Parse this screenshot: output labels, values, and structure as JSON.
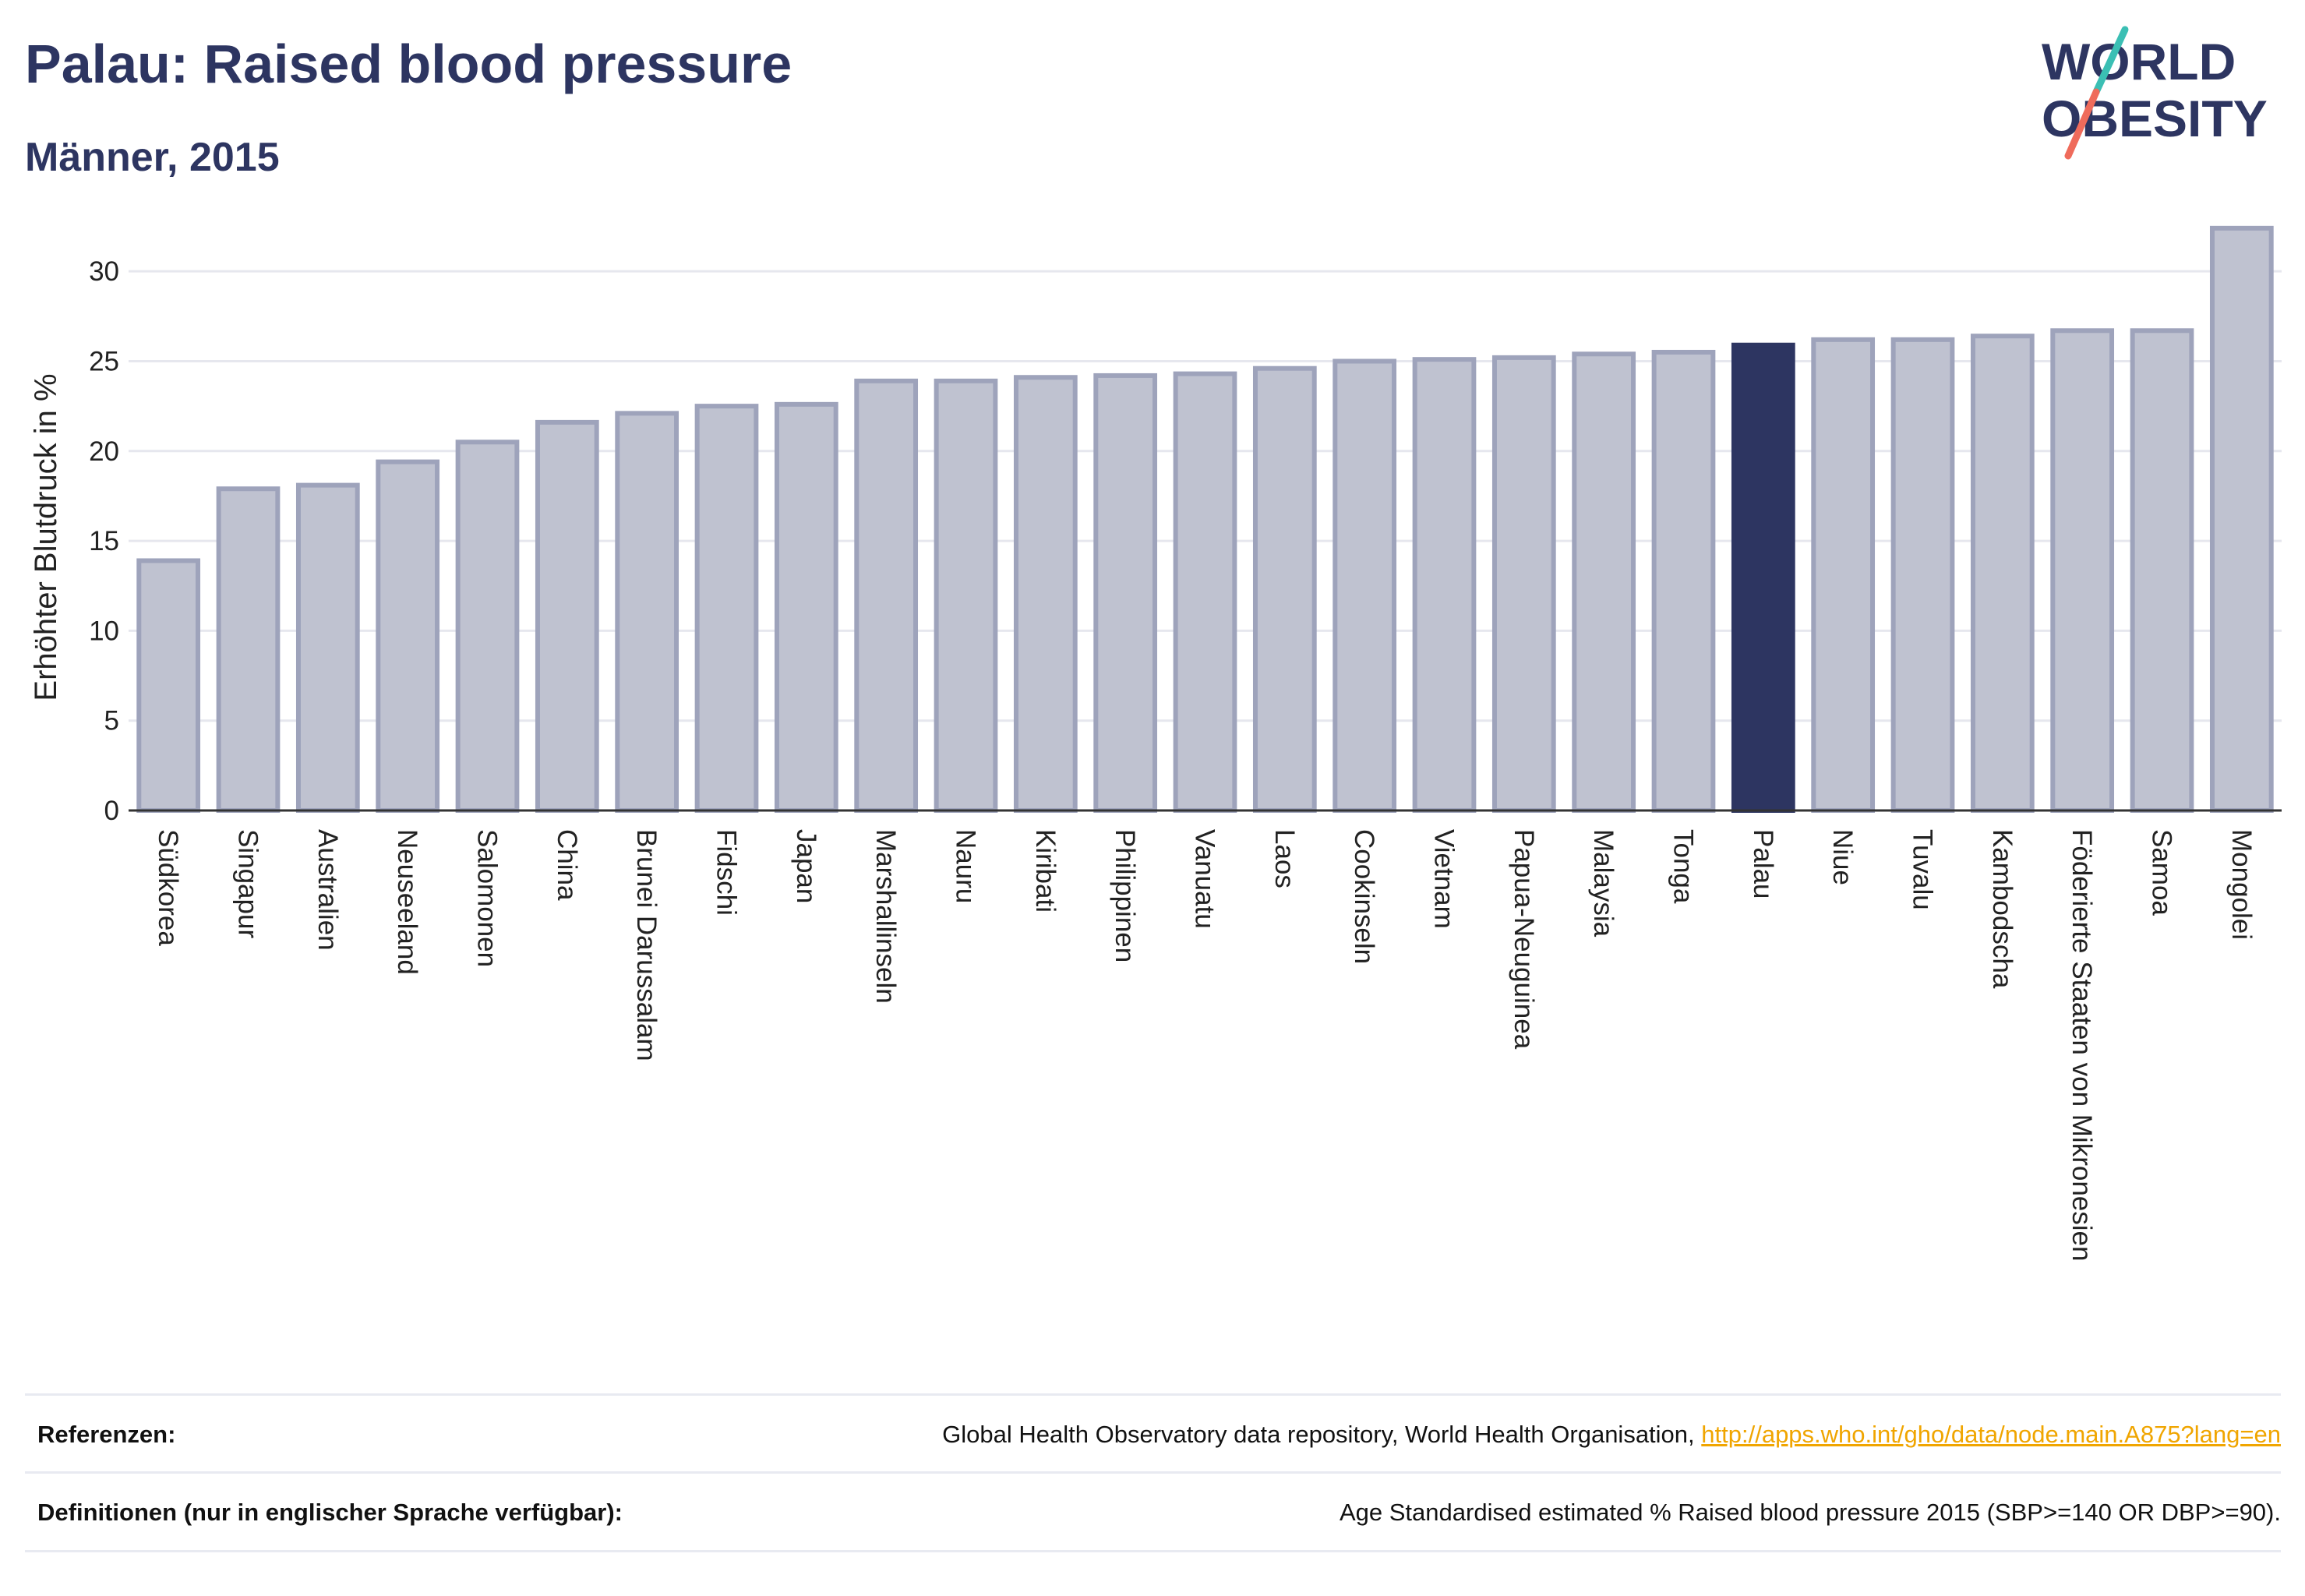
{
  "header": {
    "title": "Palau: Raised blood pressure",
    "subtitle": "Männer, 2015"
  },
  "logo": {
    "line1": "WORLD",
    "line2": "OBESITY",
    "colors": {
      "text": "#2d3561",
      "slash_teal": "#3bbfb4",
      "slash_coral": "#ef6b5b"
    }
  },
  "colors": {
    "bar_fill": "#bfc2d0",
    "bar_stroke": "#9ea3bb",
    "highlight": "#2d3561",
    "grid": "#e6e7ee",
    "baseline": "#333333"
  },
  "chart_data": {
    "type": "bar",
    "ylabel": "Erhöhter Blutdruck in %",
    "ylim": [
      0,
      33
    ],
    "yticks": [
      0,
      5,
      10,
      15,
      20,
      25,
      30
    ],
    "grid": true,
    "highlight_category": "Palau",
    "categories": [
      "Südkorea",
      "Singapur",
      "Australien",
      "Neuseeland",
      "Salomonen",
      "China",
      "Brunei Darussalam",
      "Fidschi",
      "Japan",
      "Marshallinseln",
      "Nauru",
      "Kiribati",
      "Philippinen",
      "Vanuatu",
      "Laos",
      "Cookinseln",
      "Vietnam",
      "Papua-Neuguinea",
      "Malaysia",
      "Tonga",
      "Palau",
      "Niue",
      "Tuvalu",
      "Kambodscha",
      "Föderierte Staaten von Mikronesien",
      "Samoa",
      "Mongolei"
    ],
    "values": [
      13.9,
      17.9,
      18.1,
      19.4,
      20.5,
      21.6,
      22.1,
      22.5,
      22.6,
      23.9,
      23.9,
      24.1,
      24.2,
      24.3,
      24.6,
      25.0,
      25.1,
      25.2,
      25.4,
      25.5,
      25.9,
      26.2,
      26.2,
      26.4,
      26.7,
      26.7,
      32.4
    ]
  },
  "footer": {
    "references_label": "Referenzen:",
    "references_text": "Global Health Observatory data repository, World Health Organisation,",
    "references_link": "http://apps.who.int/gho/data/node.main.A875?lang=en",
    "definitions_label": "Definitionen (nur in englischer Sprache verfügbar):",
    "definitions_text": "Age Standardised estimated % Raised blood pressure 2015 (SBP>=140 OR DBP>=90)."
  }
}
